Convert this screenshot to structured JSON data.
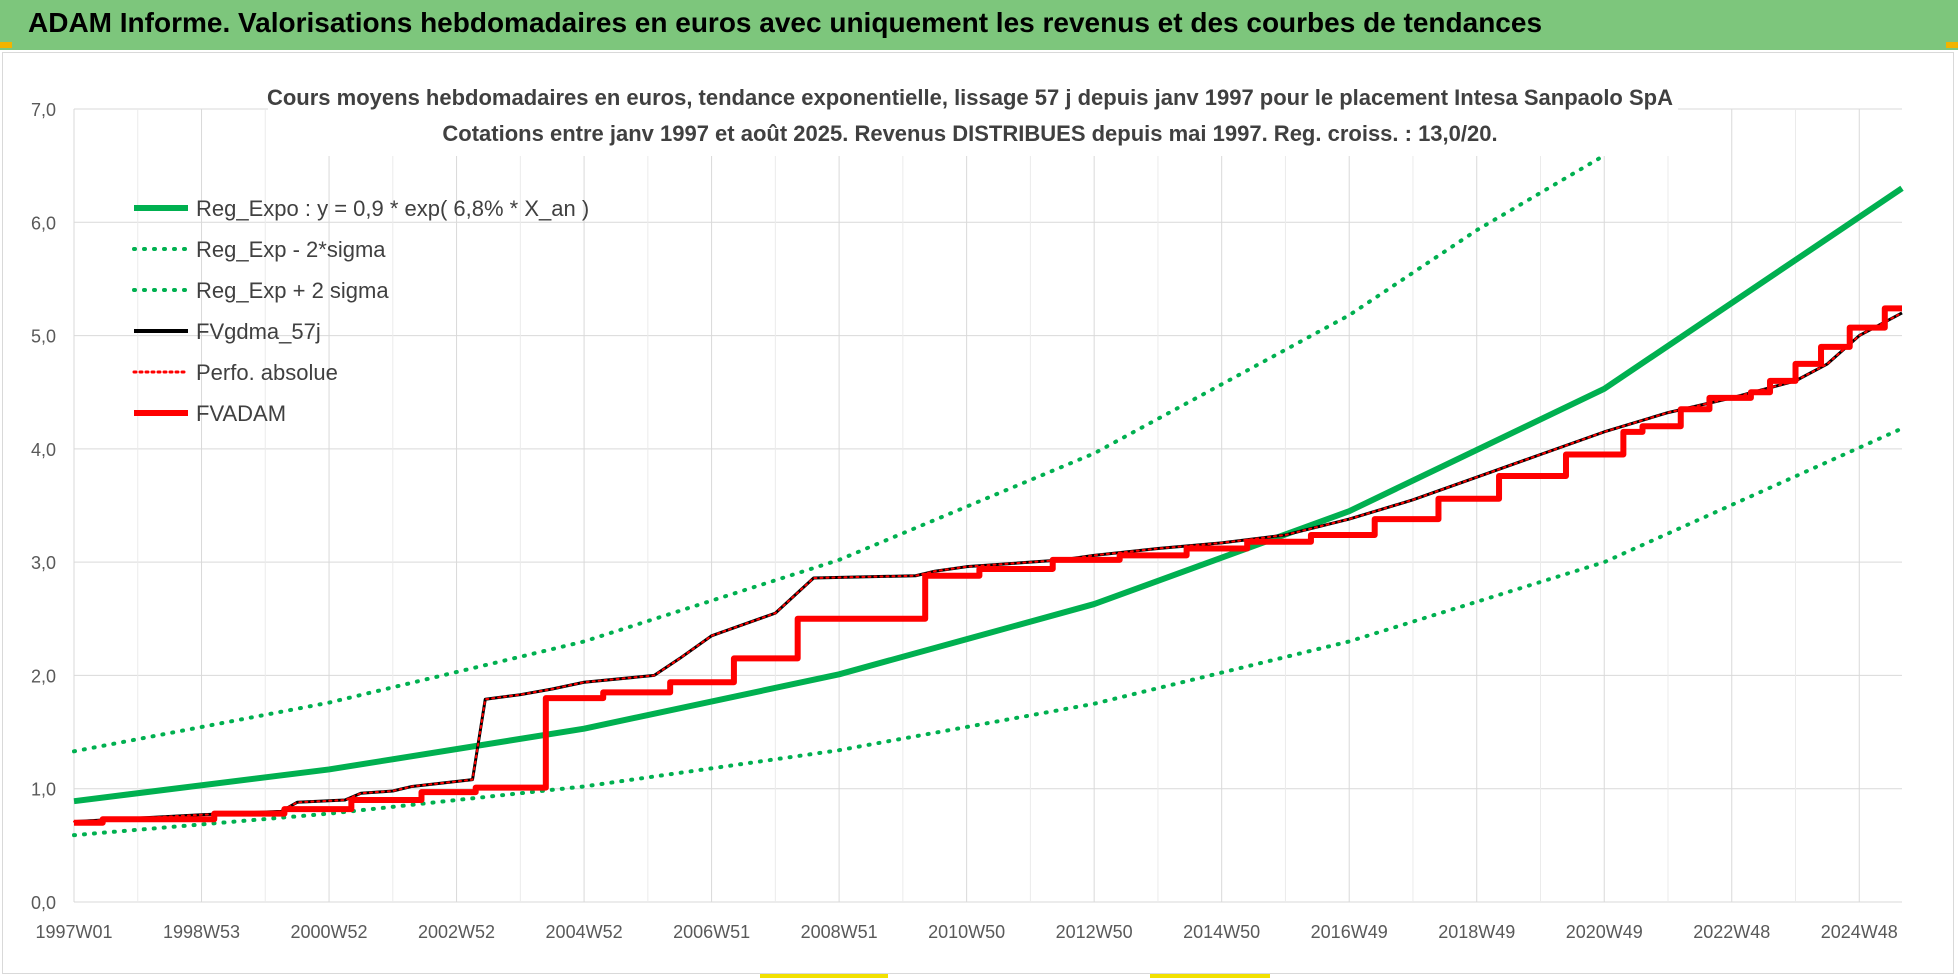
{
  "header": {
    "title": "ADAM Informe. Valorisations hebdomadaires en euros avec uniquement les revenus et des courbes de tendances"
  },
  "chart_data": {
    "type": "line",
    "title_line1": "Cours moyens hebdomadaires en euros, tendance exponentielle, lissage 57 j depuis janv 1997 pour le placement Intesa Sanpaolo SpA",
    "title_line2": "Cotations entre janv 1997 et août 2025. Revenus DISTRIBUES depuis mai 1997. Reg. croiss. : 13,0/20.",
    "xlabel": "",
    "ylabel": "",
    "ylim": [
      0,
      7
    ],
    "xlim": [
      1997.0,
      2025.67
    ],
    "grid": true,
    "legend_position": "top-left",
    "y_ticks": [
      "0,0",
      "1,0",
      "2,0",
      "3,0",
      "4,0",
      "5,0",
      "6,0",
      "7,0"
    ],
    "x_ticks": [
      {
        "label": "1997W01",
        "x": 1997.0
      },
      {
        "label": "1998W53",
        "x": 1999.0
      },
      {
        "label": "2000W52",
        "x": 2001.0
      },
      {
        "label": "2002W52",
        "x": 2003.0
      },
      {
        "label": "2004W52",
        "x": 2005.0
      },
      {
        "label": "2006W51",
        "x": 2007.0
      },
      {
        "label": "2008W51",
        "x": 2009.0
      },
      {
        "label": "2010W50",
        "x": 2011.0
      },
      {
        "label": "2012W50",
        "x": 2013.0
      },
      {
        "label": "2014W50",
        "x": 2015.0
      },
      {
        "label": "2016W49",
        "x": 2017.0
      },
      {
        "label": "2018W49",
        "x": 2019.0
      },
      {
        "label": "2020W49",
        "x": 2021.0
      },
      {
        "label": "2022W48",
        "x": 2023.0
      },
      {
        "label": "2024W48",
        "x": 2025.0
      }
    ],
    "series": [
      {
        "name": "Reg_Expo : y = 0,9 * exp( 6,8% *  X_an )",
        "style": "solid-thick",
        "color": "#00b050",
        "x": [
          1997.0,
          2001.0,
          2005.0,
          2009.0,
          2013.0,
          2017.0,
          2021.0,
          2025.67
        ],
        "y": [
          0.89,
          1.17,
          1.53,
          2.01,
          2.63,
          3.45,
          4.53,
          6.3
        ]
      },
      {
        "name": "Reg_Exp - 2*sigma",
        "style": "dotted",
        "color": "#00b050",
        "x": [
          1997.0,
          2001.0,
          2005.0,
          2009.0,
          2013.0,
          2017.0,
          2021.0,
          2025.67
        ],
        "y": [
          0.59,
          0.78,
          1.02,
          1.34,
          1.75,
          2.3,
          3.0,
          4.18
        ]
      },
      {
        "name": "Reg_Exp + 2 sigma",
        "style": "dotted",
        "color": "#00b050",
        "x": [
          1997.0,
          2001.0,
          2005.0,
          2009.0,
          2013.0,
          2017.0,
          2019.0,
          2021.0,
          2022.0
        ],
        "y": [
          1.33,
          1.76,
          2.3,
          3.02,
          3.96,
          5.18,
          5.93,
          6.59,
          7.0
        ]
      },
      {
        "name": "FVgdma_57j",
        "style": "solid",
        "color": "#000000",
        "x": [
          1997.0,
          1998.0,
          1999.0,
          2000.25,
          2000.5,
          2001.25,
          2001.5,
          2002.0,
          2002.3,
          2003.25,
          2003.45,
          2004.0,
          2004.5,
          2005.0,
          2006.1,
          2006.5,
          2007.0,
          2008.0,
          2008.6,
          2010.2,
          2010.5,
          2011.0,
          2012.5,
          2013.0,
          2014.0,
          2015.0,
          2016.0,
          2017.0,
          2018.0,
          2019.0,
          2020.0,
          2021.0,
          2022.0,
          2023.0,
          2024.0,
          2024.5,
          2025.0,
          2025.67
        ],
        "y": [
          0.71,
          0.74,
          0.77,
          0.8,
          0.88,
          0.9,
          0.96,
          0.98,
          1.02,
          1.08,
          1.79,
          1.83,
          1.88,
          1.94,
          2.0,
          2.15,
          2.35,
          2.55,
          2.86,
          2.88,
          2.92,
          2.96,
          3.02,
          3.06,
          3.12,
          3.17,
          3.24,
          3.38,
          3.55,
          3.75,
          3.95,
          4.15,
          4.32,
          4.45,
          4.6,
          4.75,
          5.0,
          5.2
        ]
      },
      {
        "name": "Perfo. absolue",
        "style": "dotted",
        "color": "#ff0000",
        "x": [
          1997.0,
          1998.0,
          1999.0,
          2000.25,
          2000.5,
          2001.25,
          2001.5,
          2002.0,
          2002.3,
          2003.25,
          2003.45,
          2004.0,
          2004.5,
          2005.0,
          2006.1,
          2006.5,
          2007.0,
          2008.0,
          2008.6,
          2010.2,
          2010.5,
          2011.0,
          2012.5,
          2013.0,
          2014.0,
          2015.0,
          2016.0,
          2017.0,
          2018.0,
          2019.0,
          2020.0,
          2021.0,
          2022.0,
          2023.0,
          2024.0,
          2024.5,
          2025.0,
          2025.67
        ],
        "y": [
          0.71,
          0.74,
          0.77,
          0.8,
          0.88,
          0.9,
          0.96,
          0.98,
          1.02,
          1.08,
          1.79,
          1.83,
          1.88,
          1.94,
          2.0,
          2.15,
          2.35,
          2.55,
          2.86,
          2.88,
          2.92,
          2.96,
          3.02,
          3.06,
          3.12,
          3.17,
          3.24,
          3.38,
          3.55,
          3.75,
          3.95,
          4.15,
          4.32,
          4.45,
          4.6,
          4.75,
          5.0,
          5.2
        ]
      },
      {
        "name": "FVADAM",
        "style": "step-thick",
        "color": "#ff0000",
        "x": [
          1997.0,
          1997.45,
          1999.2,
          2000.3,
          2001.35,
          2002.45,
          2003.3,
          2004.4,
          2005.3,
          2006.35,
          2007.35,
          2008.35,
          2010.35,
          2011.2,
          2012.35,
          2013.4,
          2014.45,
          2015.4,
          2016.4,
          2017.4,
          2018.4,
          2019.35,
          2020.4,
          2021.3,
          2021.6,
          2022.2,
          2022.65,
          2023.3,
          2023.6,
          2024.0,
          2024.4,
          2024.85,
          2025.4
        ],
        "y": [
          0.7,
          0.73,
          0.78,
          0.82,
          0.9,
          0.97,
          1.01,
          1.8,
          1.85,
          1.94,
          2.15,
          2.5,
          2.88,
          2.94,
          3.02,
          3.06,
          3.12,
          3.18,
          3.24,
          3.38,
          3.56,
          3.76,
          3.95,
          4.15,
          4.2,
          4.35,
          4.45,
          4.5,
          4.6,
          4.75,
          4.9,
          5.07,
          5.24
        ]
      }
    ]
  }
}
